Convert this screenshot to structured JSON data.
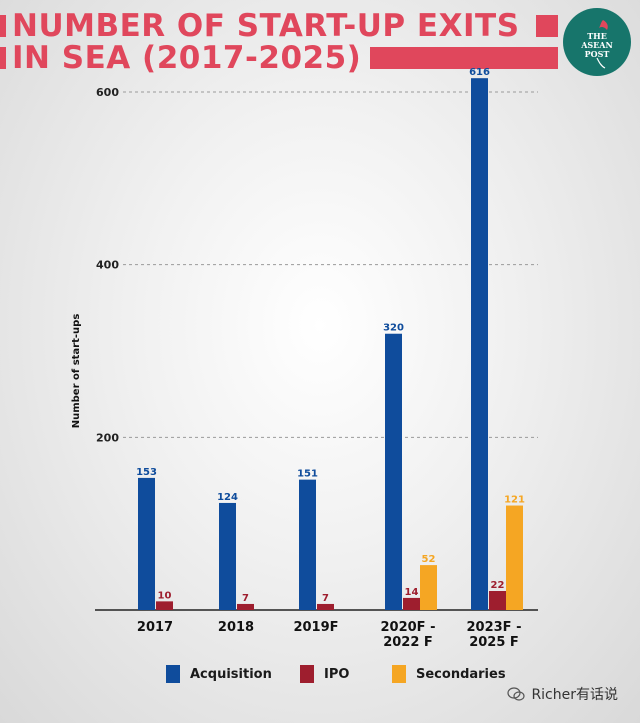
{
  "header": {
    "title_line1": "NUMBER OF START-UP EXITS",
    "title_line2": "IN SEA (2017-2025)",
    "accent_color": "#e0475c"
  },
  "logo": {
    "line1": "THE",
    "line2": "ASEAN",
    "line3": "POST",
    "color": "#17756b"
  },
  "watermark": {
    "text": "Richer有话说",
    "icon": "wechat-icon"
  },
  "chart_data": {
    "type": "bar",
    "title": "NUMBER OF START-UP EXITS IN SEA (2017-2025)",
    "ylabel": "Number of start-ups",
    "xlabel": "",
    "ylim": [
      0,
      640
    ],
    "yticks": [
      200,
      400,
      600
    ],
    "grid": true,
    "legend_position": "bottom",
    "categories": [
      "2017",
      "2018",
      "2019F",
      "2020F -\n2022 F",
      "2023F -\n2025 F"
    ],
    "series": [
      {
        "name": "Acquisition",
        "color": "#0f4c9c",
        "values": [
          153,
          124,
          151,
          320,
          616
        ]
      },
      {
        "name": "IPO",
        "color": "#9e1e2e",
        "values": [
          10,
          7,
          7,
          14,
          22
        ]
      },
      {
        "name": "Secondaries",
        "color": "#f5a623",
        "values": [
          null,
          null,
          null,
          52,
          121
        ]
      }
    ]
  }
}
